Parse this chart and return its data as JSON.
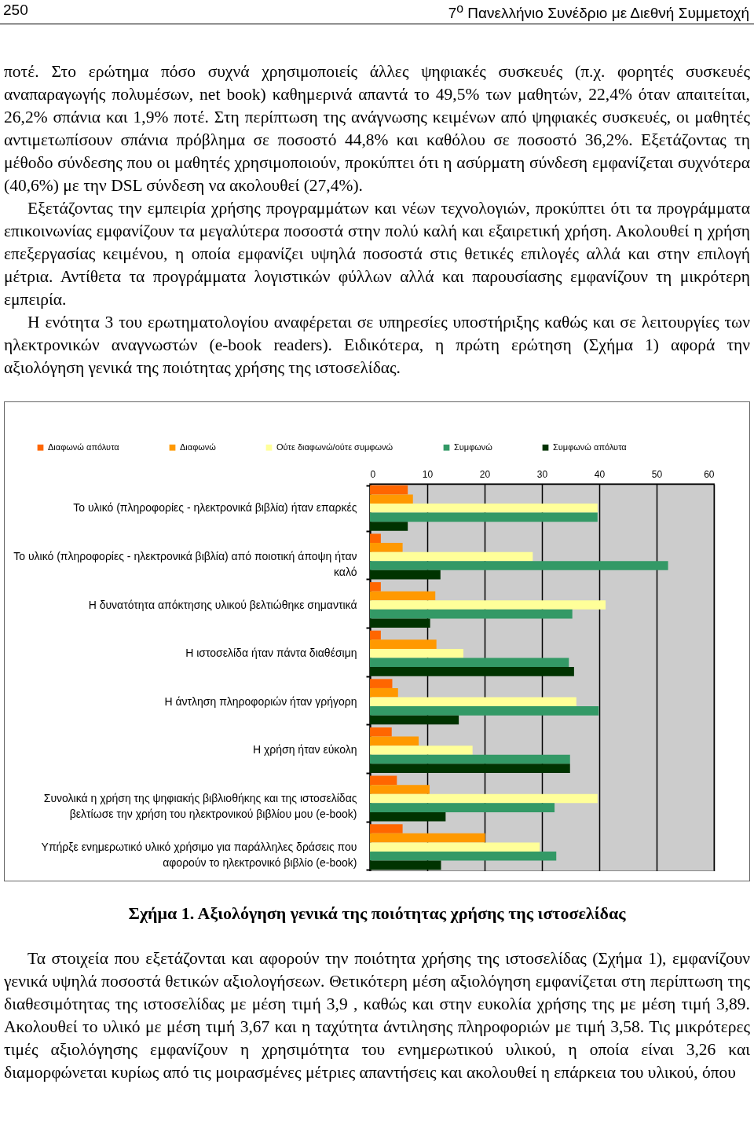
{
  "chart_data": {
    "type": "bar",
    "orientation": "horizontal",
    "title": "Σχήμα 1. Αξιολόγηση γενικά της ποιότητας χρήσης της ιστοσελίδας",
    "categories": [
      "Το υλικό (πληροφορίες - ηλεκτρονικά βιβλία) ήταν επαρκές",
      "Το υλικό (πληροφορίες - ηλεκτρονικά βιβλία) από ποιοτική άποψη ήταν καλό",
      "Η δυνατότητα απόκτησης υλικού βελτιώθηκε σημαντικά",
      "Η ιστοσελίδα ήταν πάντα διαθέσιμη",
      "Η άντληση πληροφοριών ήταν γρήγορη",
      "Η χρήση ήταν εύκολη",
      "Συνολικά η χρήση της ψηφιακής βιβλιοθήκης και της ιστοσελίδας βελτίωσε την χρήση του ηλεκτρονικού βιβλίου μου (e-book)",
      "Υπήρξε ενημερωτικό υλικό χρήσιμο για παράλληλες δράσεις που αφορούν το ηλεκτρονικό βιβλίο (e-book)"
    ],
    "series": [
      {
        "name": "Διαφωνώ απόλυτα",
        "color": "#ff6600",
        "values": [
          6.6,
          1.9,
          1.9,
          1.9,
          3.9,
          3.8,
          4.7,
          5.7
        ]
      },
      {
        "name": "Διαφωνώ",
        "color": "#ff9900",
        "values": [
          7.5,
          5.7,
          11.4,
          11.6,
          4.9,
          8.5,
          10.4,
          20.1
        ]
      },
      {
        "name": "Ούτε διαφωνώ/ούτε συμφωνώ",
        "color": "#ffff99",
        "values": [
          39.7,
          28.4,
          41.1,
          16.3,
          36.0,
          17.9,
          39.7,
          29.6
        ]
      },
      {
        "name": "Συμφωνώ",
        "color": "#339966",
        "values": [
          39.7,
          52.0,
          35.3,
          34.7,
          39.9,
          34.9,
          32.2,
          32.5
        ]
      },
      {
        "name": "Συμφωνώ απόλυτα",
        "color": "#003300",
        "values": [
          6.6,
          12.3,
          10.5,
          35.6,
          15.5,
          34.9,
          13.2,
          12.4
        ]
      }
    ],
    "xlim": [
      0,
      60
    ],
    "xticks": [
      0,
      10,
      20,
      30,
      40,
      50,
      60
    ],
    "grid": "x",
    "legend": "top",
    "annotations": [
      "250",
      "7$^{ο}$ Πανελλήνιο Συνέδριο με Διεθνή Συμμετοχή",
      "ποτέ. Στο ερώτημα πόσο συχνά χρησιμοποιείς άλλες ψηφιακές συσκευές (π.χ. φορητές συσκευές αναπαραγωγής πολυμέσων, net book) καθημερινά απαντά το 49,5% των μαθητών, 22,4% όταν απαιτείται, 26,2% σπάνια και 1,9% ποτέ. Στη περίπτωση της ανάγνωσης κειμένων από ψηφιακές συσκευές, οι μαθητές αντιμετωπίσουν σπάνια πρόβλημα σε ποσοστό 44,8% και καθόλου σε ποσοστό 36,2%. Εξετάζοντας τη μέθοδο σύνδεσης που οι μαθητές χρησιμοποιούν, προκύπτει ότι η ασύρματη σύνδεση εμφανίζεται συχνότερα (40,6%) με την DSL σύνδεση να ακολουθεί (27,4%).",
      "Εξετάζοντας την εμπειρία χρήσης προγραμμάτων και νέων τεχνολογιών, προκύπτει ότι τα προγράμματα επικοινωνίας εμφανίζουν τα μεγαλύτερα ποσοστά στην πολύ καλή και εξαιρετική χρήση. Ακολουθεί η χρήση επεξεργασίας κειμένου, η οποία εμφανίζει υψηλά ποσοστά στις θετικές επιλογές αλλά και στην επιλογή μέτρια. Αντίθετα τα προγράμματα λογιστικών φύλλων αλλά και παρουσίασης εμφανίζουν τη μικρότερη εμπειρία.",
      "Η ενότητα 3 του ερωτηματολογίου αναφέρεται σε υπηρεσίες υποστήριξης καθώς και σε λειτουργίες των ηλεκτρονικών αναγνωστών (e-book readers). Ειδικότερα, η πρώτη ερώτηση (Σχήμα 1) αφορά την αξιολόγηση γενικά της ποιότητας χρήσης της ιστοσελίδας.",
      "Τα στοιχεία που εξετάζονται και αφορούν την ποιότητα χρήσης της ιστοσελίδας (Σχήμα 1), εμφανίζουν γενικά υψηλά ποσοστά θετικών αξιολογήσεων. Θετικότερη μέση αξιολόγηση εμφανίζεται στη περίπτωση της διαθεσιμότητας της ιστοσελίδας με μέση τιμή 3,9 , καθώς και στην ευκολία χρήσης της με μέση τιμή 3,89. Ακολουθεί το υλικό με μέση τιμή 3,67 και η ταχύτητα άντιλησης πληροφοριών με τιμή 3,58. Τις μικρότερες τιμές αξιολόγησης εμφανίζουν η χρησιμότητα του ενημερωτικού υλικού, η οποία είναι 3,26 και διαμορφώνεται κυρίως από τις μοιρασμένες μέτριες απαντήσεις και ακολουθεί η επάρκεια του υλικού, όπου"
    ]
  }
}
